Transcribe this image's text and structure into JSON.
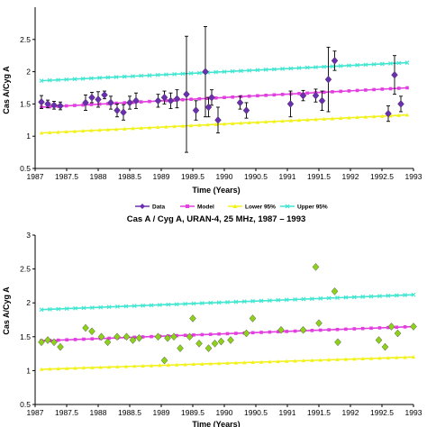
{
  "chart_data": [
    {
      "type": "scatter",
      "title": "",
      "xlabel": "Time (Years)",
      "ylabel": "Cas A/Cyg A",
      "xlim": [
        1987,
        1993
      ],
      "ylim": [
        0.5,
        3.0
      ],
      "xticks": [
        "1987",
        "1987.5",
        "1988",
        "1988.5",
        "1989",
        "1989.5",
        "1990",
        "1990.5",
        "1991",
        "1991.5",
        "1992",
        "1992.5",
        "1993"
      ],
      "yticks": [
        "0.5",
        "1",
        "1.5",
        "2",
        "2.5"
      ],
      "legend_position": "bottom",
      "data": {
        "x": [
          1987.1,
          1987.2,
          1987.3,
          1987.4,
          1987.8,
          1987.9,
          1988.0,
          1988.1,
          1988.2,
          1988.3,
          1988.4,
          1988.5,
          1988.6,
          1988.95,
          1989.05,
          1989.15,
          1989.25,
          1989.4,
          1989.55,
          1989.7,
          1989.75,
          1989.8,
          1989.9,
          1990.25,
          1990.35,
          1991.05,
          1991.25,
          1991.45,
          1991.55,
          1991.65,
          1991.75,
          1992.6,
          1992.7,
          1992.8
        ],
        "y": [
          1.53,
          1.5,
          1.48,
          1.47,
          1.52,
          1.6,
          1.57,
          1.64,
          1.52,
          1.4,
          1.37,
          1.52,
          1.55,
          1.55,
          1.6,
          1.55,
          1.58,
          1.65,
          1.4,
          2.0,
          1.45,
          1.6,
          1.25,
          1.52,
          1.4,
          1.5,
          1.63,
          1.63,
          1.55,
          1.88,
          2.17,
          1.35,
          1.95,
          1.5
        ],
        "err": [
          0.1,
          0.06,
          0.06,
          0.06,
          0.12,
          0.08,
          0.12,
          0.06,
          0.1,
          0.1,
          0.12,
          0.1,
          0.12,
          0.1,
          0.1,
          0.12,
          0.14,
          0.9,
          0.15,
          0.7,
          0.15,
          0.12,
          0.2,
          0.1,
          0.12,
          0.2,
          0.08,
          0.1,
          0.15,
          0.5,
          0.15,
          0.12,
          0.3,
          0.12
        ]
      },
      "model": {
        "x": [
          1987.1,
          1992.9
        ],
        "y": [
          1.45,
          1.75
        ]
      },
      "lower95": {
        "x": [
          1987.1,
          1992.9
        ],
        "y": [
          1.05,
          1.33
        ]
      },
      "upper95": {
        "x": [
          1987.1,
          1992.9
        ],
        "y": [
          1.86,
          2.14
        ]
      },
      "legend": [
        "Data",
        "Model",
        "Lower 95%",
        "Upper 95%"
      ],
      "colors": {
        "data": "#6a2fb0",
        "model": "#e33ee0",
        "lower": "#f2f21a",
        "upper": "#3fe6d0"
      }
    },
    {
      "type": "scatter",
      "title": "Cas A / Cyg A, URAN-4, 25 MHz, 1987 – 1993",
      "xlabel": "Time (Years)",
      "ylabel": "Cas A/Cyg A",
      "xlim": [
        1987,
        1993
      ],
      "ylim": [
        0.5,
        3.0
      ],
      "xticks": [
        "1987",
        "1987.5",
        "1988",
        "1988.5",
        "1989",
        "1989.5",
        "1990",
        "1990.5",
        "1991",
        "1991.5",
        "1992",
        "1992.5",
        "1993"
      ],
      "yticks": [
        "0.5",
        "1",
        "1.5",
        "2",
        "2.5",
        "3"
      ],
      "data": {
        "x": [
          1987.1,
          1987.2,
          1987.3,
          1987.4,
          1987.8,
          1987.9,
          1988.05,
          1988.15,
          1988.3,
          1988.45,
          1988.55,
          1988.65,
          1988.95,
          1989.05,
          1989.1,
          1989.2,
          1989.3,
          1989.45,
          1989.5,
          1989.6,
          1989.75,
          1989.85,
          1989.95,
          1990.1,
          1990.35,
          1990.45,
          1990.9,
          1991.25,
          1991.45,
          1991.5,
          1991.75,
          1991.8,
          1992.45,
          1992.55,
          1992.65,
          1992.75,
          1993.0
        ],
        "y": [
          1.42,
          1.45,
          1.42,
          1.35,
          1.63,
          1.58,
          1.5,
          1.42,
          1.5,
          1.5,
          1.45,
          1.48,
          1.5,
          1.15,
          1.48,
          1.5,
          1.33,
          1.5,
          1.77,
          1.4,
          1.33,
          1.4,
          1.43,
          1.45,
          1.55,
          1.77,
          1.6,
          1.6,
          2.53,
          1.7,
          2.17,
          1.42,
          1.45,
          1.35,
          1.65,
          1.55,
          1.65
        ]
      },
      "model": {
        "x": [
          1987.1,
          1993.0
        ],
        "y": [
          1.44,
          1.65
        ]
      },
      "lower95": {
        "x": [
          1987.1,
          1993.0
        ],
        "y": [
          1.02,
          1.2
        ]
      },
      "upper95": {
        "x": [
          1987.1,
          1993.0
        ],
        "y": [
          1.9,
          2.12
        ]
      },
      "colors": {
        "data": "#8ed11a",
        "model": "#e33ee0",
        "lower": "#f2f21a",
        "upper": "#3fe6d0"
      }
    }
  ]
}
